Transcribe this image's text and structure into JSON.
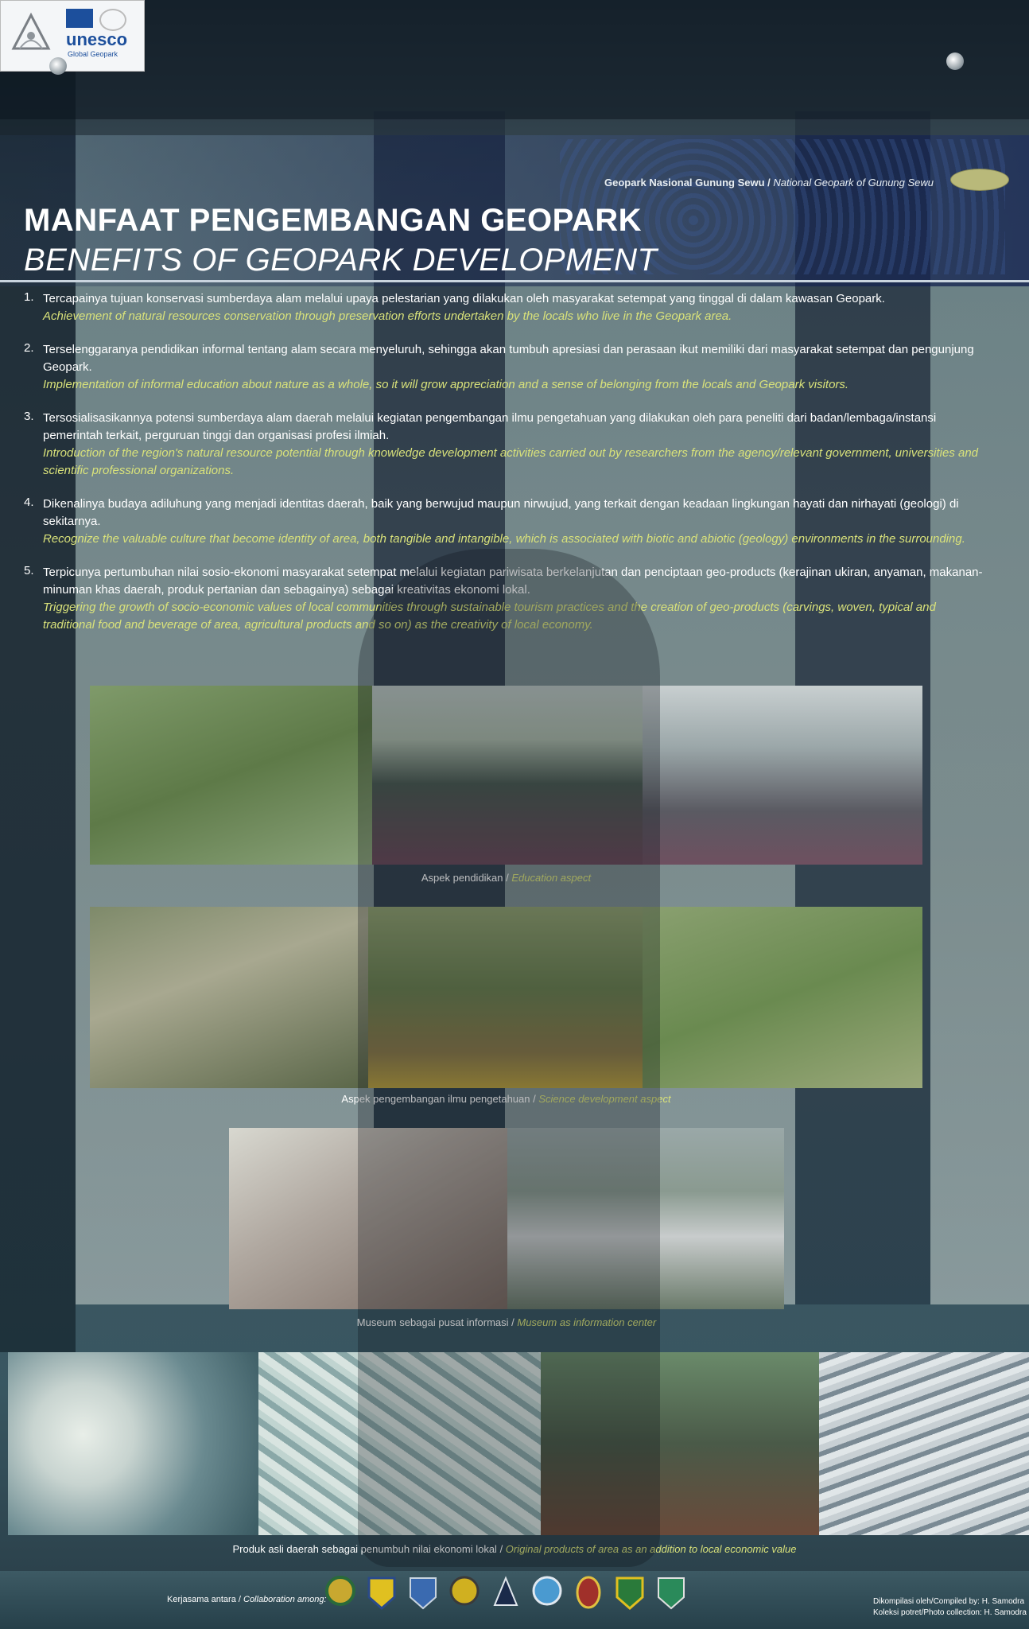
{
  "logos": {
    "unesco_text": "unesco",
    "unesco_sub": "Global Geopark",
    "geopark_icon": "geopark-logo-icon",
    "unesco_icon": "unesco-temple-icon"
  },
  "header": {
    "subtitle_id": "Geopark Nasional Gunung Sewu",
    "subtitle_sep": " / ",
    "subtitle_en": "National Geopark of Gunung Sewu",
    "title_id": "MANFAAT PENGEMBANGAN GEOPARK",
    "title_en": "BENEFITS OF GEOPARK DEVELOPMENT"
  },
  "benefits": [
    {
      "num": "1.",
      "id": "Tercapainya tujuan konservasi sumberdaya alam melalui upaya pelestarian yang dilakukan oleh masyarakat setempat yang tinggal di dalam kawasan Geopark.",
      "en": "Achievement of natural resources conservation through preservation efforts undertaken by the locals who live in the Geopark area."
    },
    {
      "num": "2.",
      "id": "Terselenggaranya pendidikan informal tentang alam secara menyeluruh, sehingga akan tumbuh apresiasi dan perasaan ikut memiliki dari masyarakat setempat dan pengunjung Geopark.",
      "en": "Implementation of informal education about nature as a whole, so it will grow appreciation and a sense of belonging from the locals and Geopark visitors."
    },
    {
      "num": "3.",
      "id": "Tersosialisasikannya potensi sumberdaya alam daerah melalui kegiatan pengembangan ilmu pengetahuan yang dilakukan oleh para peneliti dari badan/lembaga/instansi pemerintah terkait, perguruan tinggi dan organisasi profesi ilmiah.",
      "en": "Introduction of the region's natural resource potential through knowledge development activities carried out by researchers from the agency/relevant government, universities and scientific professional organizations."
    },
    {
      "num": "4.",
      "id": "Dikenalinya budaya adiluhung yang menjadi identitas daerah, baik yang berwujud maupun nirwujud, yang terkait dengan keadaan lingkungan hayati dan nirhayati (geologi) di sekitarnya.",
      "en": "Recognize the valuable culture that become identity of area, both tangible and intangible, which is associated with biotic and abiotic (geology) environments in the surrounding."
    },
    {
      "num": "5.",
      "id": "Terpicunya pertumbuhan nilai sosio-ekonomi masyarakat setempat melalui kegiatan pariwisata berkelanjutan dan penciptaan geo-products (kerajinan ukiran, anyaman, makanan-minuman khas daerah, produk pertanian dan sebagainya) sebagai kreativitas ekonomi lokal.",
      "en": "Triggering the growth of socio-economic values of local communities through sustainable tourism practices and the creation of geo-products (carvings, woven, typical and traditional food and beverage of area, agricultural products and so on) as the creativity of local economy."
    }
  ],
  "captions": {
    "education_id": "Aspek pendidikan",
    "education_en": "Education aspect",
    "science_id": "Aspek pengembangan ilmu pengetahuan",
    "science_en": "Science development aspect",
    "museum_id": "Museum sebagai pusat informasi",
    "museum_en": "Museum as information center",
    "products_id": "Produk asli daerah sebagai penumbuh nilai ekonomi lokal",
    "products_en": "Original products of area as an addition to local economic value",
    "sep": " / "
  },
  "footer": {
    "collab_id": "Kerjasama antara",
    "collab_en": "Collaboration among:",
    "compiled": "Dikompilasi oleh/Compiled by: H. Samodra",
    "collection": "Koleksi potret/Photo collection: H. Samodra",
    "badge_icons": [
      "government-emblem-icon",
      "regency-emblem-icon",
      "agency-emblem-icon",
      "ministry-emblem-icon",
      "ministry-tourism-emblem-icon",
      "ministry-education-emblem-icon",
      "province-emblem-icon",
      "province-central-java-emblem-icon",
      "province-east-java-emblem-icon"
    ]
  }
}
